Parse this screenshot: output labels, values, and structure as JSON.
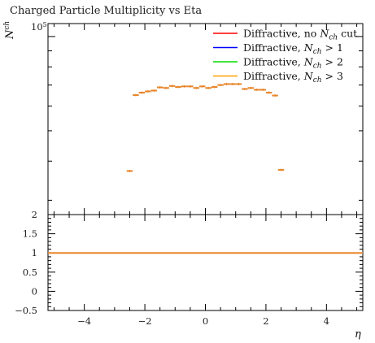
{
  "chart_data": {
    "type": "scatter",
    "title": "Charged Particle Multiplicity vs Eta",
    "xlabel": "η",
    "ylabel": {
      "base": "N",
      "sup": "ch"
    },
    "xlim": [
      -5.2,
      5.2
    ],
    "main_y": {
      "scale": "log",
      "ylim": [
        27000,
        110000
      ],
      "tick_label": {
        "base": "10",
        "sup": "5",
        "value": 100000
      },
      "major_ticks": [
        100000
      ],
      "minor_ticks": [
        30000,
        40000,
        50000,
        60000,
        70000,
        80000,
        90000
      ]
    },
    "ratio_y": {
      "ylim": [
        -0.5,
        2
      ],
      "ticks": [
        -0.5,
        0,
        0.5,
        1,
        1.5,
        2
      ],
      "tick_labels": [
        "−0.5",
        "0",
        "0.5",
        "1",
        "1.5",
        "2"
      ]
    },
    "x_ticks": [
      -4,
      -2,
      0,
      2,
      4
    ],
    "x_tick_labels": [
      "−4",
      "−2",
      "0",
      "2",
      "4"
    ],
    "legend": {
      "position": "top-right",
      "entries": [
        {
          "text": "Diffractive, no ",
          "math": "N",
          "sub": "ch",
          "suffix": " cut",
          "color": "#ff0000"
        },
        {
          "text": "Diffractive, ",
          "math": "N",
          "sub": "ch",
          "suffix": " > 1",
          "color": "#0000ff"
        },
        {
          "text": "Diffractive, ",
          "math": "N",
          "sub": "ch",
          "suffix": " > 2",
          "color": "#00dd00"
        },
        {
          "text": "Diffractive, ",
          "math": "N",
          "sub": "ch",
          "suffix": " > 3",
          "color": "#ffa000"
        }
      ]
    },
    "marker_color": "#e8862a",
    "ratio_line_color": "#e8862a",
    "points": [
      {
        "x": -2.5,
        "y": 37200,
        "ratio": 1
      },
      {
        "x": -2.3,
        "y": 65000,
        "ratio": 1
      },
      {
        "x": -2.1,
        "y": 66200,
        "ratio": 1
      },
      {
        "x": -1.9,
        "y": 66800,
        "ratio": 1
      },
      {
        "x": -1.7,
        "y": 67200,
        "ratio": 1
      },
      {
        "x": -1.5,
        "y": 68800,
        "ratio": 1
      },
      {
        "x": -1.3,
        "y": 68500,
        "ratio": 1
      },
      {
        "x": -1.1,
        "y": 69500,
        "ratio": 1
      },
      {
        "x": -0.9,
        "y": 69000,
        "ratio": 1
      },
      {
        "x": -0.7,
        "y": 69300,
        "ratio": 1
      },
      {
        "x": -0.5,
        "y": 69300,
        "ratio": 1
      },
      {
        "x": -0.3,
        "y": 68500,
        "ratio": 1
      },
      {
        "x": -0.1,
        "y": 69300,
        "ratio": 1
      },
      {
        "x": 0.1,
        "y": 68500,
        "ratio": 1
      },
      {
        "x": 0.3,
        "y": 69000,
        "ratio": 1
      },
      {
        "x": 0.5,
        "y": 70000,
        "ratio": 1
      },
      {
        "x": 0.7,
        "y": 70500,
        "ratio": 1
      },
      {
        "x": 0.9,
        "y": 70500,
        "ratio": 1
      },
      {
        "x": 1.1,
        "y": 70500,
        "ratio": 1
      },
      {
        "x": 1.3,
        "y": 68000,
        "ratio": 1
      },
      {
        "x": 1.5,
        "y": 68500,
        "ratio": 1
      },
      {
        "x": 1.7,
        "y": 67600,
        "ratio": 1
      },
      {
        "x": 1.9,
        "y": 67600,
        "ratio": 1
      },
      {
        "x": 2.1,
        "y": 66200,
        "ratio": 1
      },
      {
        "x": 2.3,
        "y": 64800,
        "ratio": 1
      },
      {
        "x": 2.5,
        "y": 37500,
        "ratio": 1
      }
    ]
  }
}
